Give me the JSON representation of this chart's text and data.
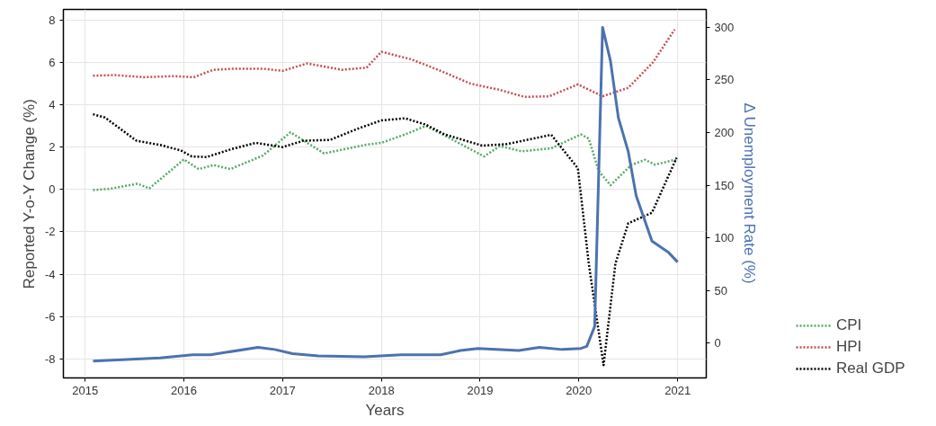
{
  "chart_data": {
    "type": "line",
    "xlabel": "Years",
    "ylabel": "Reported Y-o-Y Change (%)",
    "y2label": "Δ Unemployment Rate (%)",
    "xlim": [
      2014.78,
      2021.29
    ],
    "xticks": [
      2015,
      2016,
      2017,
      2018,
      2019,
      2020,
      2021
    ],
    "ylim": [
      -8.9,
      8.5
    ],
    "yticks": [
      -8,
      -6,
      -4,
      -2,
      0,
      2,
      4,
      6,
      8
    ],
    "y2lim": [
      -33,
      317
    ],
    "y2ticks": [
      0,
      50,
      100,
      150,
      200,
      250,
      300
    ],
    "grid": true,
    "legend": "bottom right",
    "series": [
      {
        "name": "CPI",
        "color": "#55a868",
        "line_style": "dotted",
        "x": [
          2015.08,
          2015.25,
          2015.53,
          2015.65,
          2015.92,
          2016.0,
          2016.15,
          2016.3,
          2016.47,
          2016.8,
          2017.08,
          2017.42,
          2017.83,
          2018.0,
          2018.24,
          2018.45,
          2018.64,
          2019.04,
          2019.2,
          2019.42,
          2019.72,
          2020.02,
          2020.1,
          2020.2,
          2020.32,
          2020.53,
          2020.67,
          2020.77,
          2020.99
        ],
        "values": [
          -0.03,
          0.03,
          0.27,
          0.05,
          1.1,
          1.42,
          0.96,
          1.15,
          0.96,
          1.6,
          2.7,
          1.7,
          2.1,
          2.2,
          2.6,
          3.0,
          2.55,
          1.56,
          2.05,
          1.8,
          1.94,
          2.6,
          2.4,
          0.88,
          0.2,
          1.15,
          1.4,
          1.17,
          1.42
        ]
      },
      {
        "name": "HPI",
        "color": "#c44e52",
        "line_style": "dotted",
        "x": [
          2015.08,
          2015.3,
          2015.6,
          2015.9,
          2016.1,
          2016.3,
          2016.5,
          2016.8,
          2017.0,
          2017.25,
          2017.6,
          2017.85,
          2018.0,
          2018.3,
          2018.6,
          2018.9,
          2019.2,
          2019.45,
          2019.7,
          2019.99,
          2020.24,
          2020.5,
          2020.75,
          2020.97
        ],
        "values": [
          5.37,
          5.4,
          5.3,
          5.35,
          5.3,
          5.65,
          5.7,
          5.7,
          5.6,
          5.95,
          5.65,
          5.75,
          6.5,
          6.15,
          5.6,
          5.0,
          4.7,
          4.37,
          4.4,
          4.96,
          4.4,
          4.8,
          6.0,
          7.55
        ]
      },
      {
        "name": "Real GDP",
        "color": "#000000",
        "line_style": "dotted",
        "x": [
          2015.08,
          2015.2,
          2015.52,
          2015.76,
          2015.97,
          2016.08,
          2016.23,
          2016.48,
          2016.73,
          2017.0,
          2017.21,
          2017.48,
          2017.78,
          2018.0,
          2018.24,
          2018.45,
          2018.64,
          2019.02,
          2019.27,
          2019.72,
          2019.99,
          2020.1,
          2020.25,
          2020.37,
          2020.5,
          2020.74,
          2020.99
        ],
        "values": [
          3.55,
          3.4,
          2.3,
          2.1,
          1.84,
          1.56,
          1.53,
          1.9,
          2.2,
          2.0,
          2.3,
          2.34,
          2.9,
          3.26,
          3.36,
          3.06,
          2.6,
          2.07,
          2.14,
          2.58,
          1.0,
          -3.5,
          -8.3,
          -3.5,
          -1.6,
          -1.1,
          1.5
        ]
      },
      {
        "color": "#4c72b0",
        "line_style": "solid",
        "axis": "y2",
        "x": [
          2015.08,
          2015.76,
          2016.09,
          2016.27,
          2016.75,
          2016.92,
          2017.1,
          2017.36,
          2017.83,
          2018.2,
          2018.6,
          2018.8,
          2018.98,
          2019.39,
          2019.6,
          2019.83,
          2020.02,
          2020.08,
          2020.16,
          2020.24,
          2020.32,
          2020.4,
          2020.5,
          2020.58,
          2020.74,
          2020.91,
          2021.0
        ],
        "values": [
          -17,
          -14,
          -11,
          -11,
          -4,
          -6,
          -10,
          -12,
          -13,
          -11,
          -11,
          -7,
          -5,
          -7,
          -4,
          -6,
          -5,
          -3,
          16,
          300,
          268,
          214,
          182,
          140,
          97,
          86,
          77
        ]
      }
    ]
  }
}
